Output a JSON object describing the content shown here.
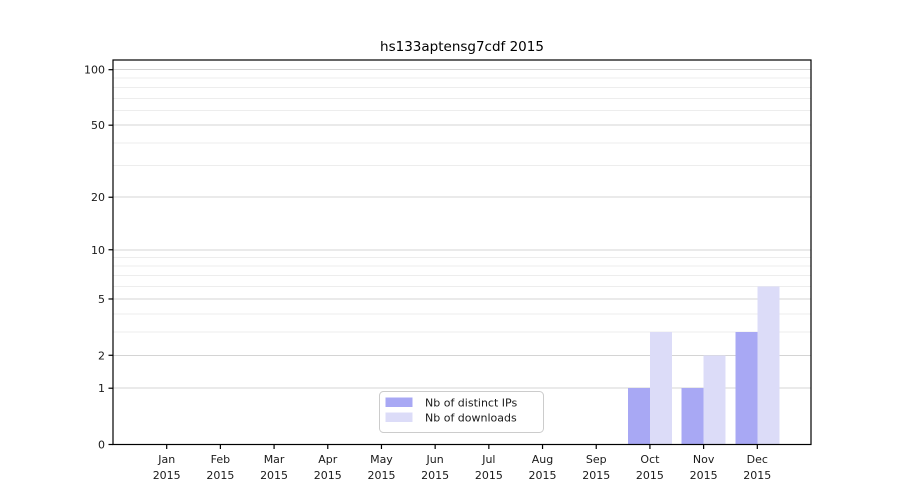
{
  "chart_data": {
    "type": "bar",
    "title": "hs133aptensg7cdf 2015",
    "x_tick_year": "2015",
    "categories": [
      "Jan",
      "Feb",
      "Mar",
      "Apr",
      "May",
      "Jun",
      "Jul",
      "Aug",
      "Sep",
      "Oct",
      "Nov",
      "Dec"
    ],
    "series": [
      {
        "name": "Nb of distinct IPs",
        "color": "#a8a8f4",
        "values": [
          0,
          0,
          0,
          0,
          0,
          0,
          0,
          0,
          0,
          1,
          1,
          3
        ]
      },
      {
        "name": "Nb of downloads",
        "color": "#dcdcf8",
        "values": [
          0,
          0,
          0,
          0,
          0,
          0,
          0,
          0,
          0,
          3,
          2,
          6
        ]
      }
    ],
    "yscale": "log1p",
    "ylim": [
      0,
      113
    ],
    "y_major_ticks": [
      0,
      1,
      2,
      5,
      10,
      20,
      50,
      100
    ],
    "y_minor_gridlines": [
      3,
      4,
      6,
      7,
      8,
      9,
      30,
      40,
      60,
      70,
      80,
      90
    ],
    "grid": true,
    "legend_position": "lower center"
  },
  "colors": {
    "major_grid": "#d4d4d4",
    "minor_grid": "#ededed",
    "spine": "#000000",
    "tick_text": "#1a1a1a",
    "legend_border": "#cccccc",
    "background": "#ffffff"
  }
}
